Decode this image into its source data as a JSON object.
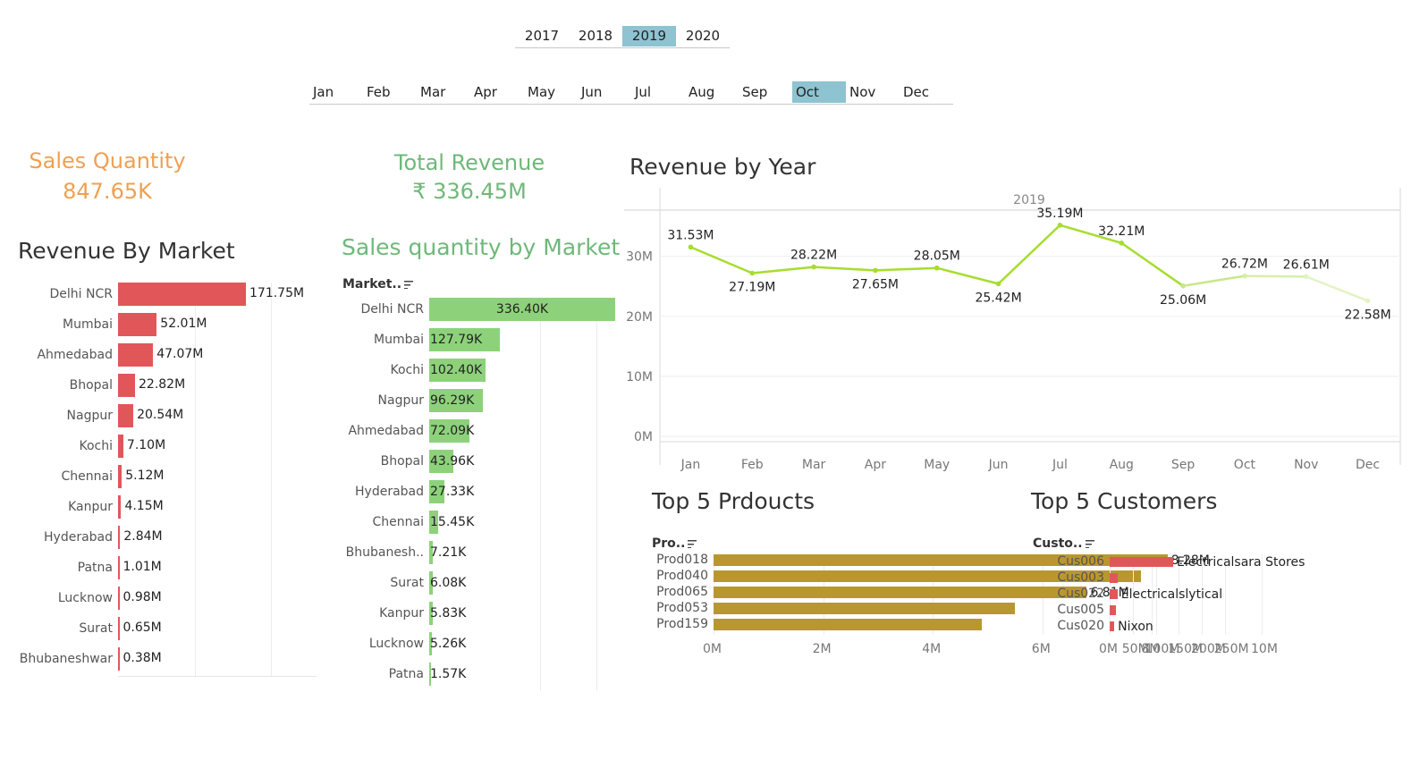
{
  "year_filter": {
    "items": [
      "2017",
      "2018",
      "2019",
      "2020"
    ],
    "selected": "2019"
  },
  "month_filter": {
    "items": [
      "Jan",
      "Feb",
      "Mar",
      "Apr",
      "May",
      "Jun",
      "Jul",
      "Aug",
      "Sep",
      "Oct",
      "Nov",
      "Dec"
    ],
    "selected": "Oct"
  },
  "kpi": {
    "sales_quantity": {
      "title": "Sales Quantity",
      "value": "847.65K",
      "color": "#f0a050"
    },
    "total_revenue": {
      "title": "Total Revenue",
      "value": "₹ 336.45M",
      "color": "#6fb879"
    }
  },
  "revenue_by_market": {
    "title": "Revenue By Market",
    "bar_color": "#e15759",
    "chart_data": {
      "type": "bar",
      "orientation": "horizontal",
      "categories": [
        "Delhi NCR",
        "Mumbai",
        "Ahmedabad",
        "Bhopal",
        "Nagpur",
        "Kochi",
        "Chennai",
        "Kanpur",
        "Hyderabad",
        "Patna",
        "Lucknow",
        "Surat",
        "Bhubaneshwar"
      ],
      "values": [
        171.75,
        52.01,
        47.07,
        22.82,
        20.54,
        7.1,
        5.12,
        4.15,
        2.84,
        1.01,
        0.98,
        0.65,
        0.38
      ],
      "labels": [
        "171.75M",
        "52.01M",
        "47.07M",
        "22.82M",
        "20.54M",
        "7.10M",
        "5.12M",
        "4.15M",
        "2.84M",
        "1.01M",
        "0.98M",
        "0.65M",
        "0.38M"
      ],
      "unit": "M",
      "xlim": [
        0,
        250
      ]
    }
  },
  "sales_qty_by_market": {
    "title": "Sales quantity by Market",
    "header": "Market..",
    "bar_color": "#8dd27a",
    "chart_data": {
      "type": "bar",
      "orientation": "horizontal",
      "categories": [
        "Delhi NCR",
        "Mumbai",
        "Kochi",
        "Nagpur",
        "Ahmedabad",
        "Bhopal",
        "Hyderabad",
        "Chennai",
        "Bhubanesh..",
        "Surat",
        "Kanpur",
        "Lucknow",
        "Patna"
      ],
      "values": [
        336.4,
        127.79,
        102.4,
        96.29,
        72.09,
        43.96,
        27.33,
        15.45,
        7.21,
        6.08,
        5.83,
        5.26,
        1.57
      ],
      "labels": [
        "336.40K",
        "127.79K",
        "102.40K",
        "96.29K",
        "72.09K",
        "43.96K",
        "27.33K",
        "15.45K",
        "7.21K",
        "6.08K",
        "5.83K",
        "5.26K",
        "1.57K"
      ],
      "unit": "K",
      "xlim": [
        0,
        336.4
      ]
    }
  },
  "revenue_by_year": {
    "title": "Revenue by Year",
    "line_color": "#a6dd2e",
    "chart_data": {
      "type": "line",
      "year_header": "2019",
      "x": [
        "Jan",
        "Feb",
        "Mar",
        "Apr",
        "May",
        "Jun",
        "Jul",
        "Aug",
        "Sep",
        "Oct",
        "Nov",
        "Dec"
      ],
      "values": [
        31.53,
        27.19,
        28.22,
        27.65,
        28.05,
        25.42,
        35.19,
        32.21,
        25.06,
        26.72,
        26.61,
        22.58
      ],
      "labels": [
        "31.53M",
        "27.19M",
        "28.22M",
        "27.65M",
        "28.05M",
        "25.42M",
        "35.19M",
        "32.21M",
        "25.06M",
        "26.72M",
        "26.61M",
        "22.58M"
      ],
      "y_ticks": [
        "0M",
        "10M",
        "20M",
        "30M"
      ],
      "y_tick_values": [
        0,
        10,
        20,
        30
      ],
      "ylim": [
        0,
        36.5
      ]
    }
  },
  "top_products": {
    "title": "Top 5 Prdoucts",
    "header": "Pro..",
    "bar_color": "#b8982e",
    "chart_data": {
      "type": "bar",
      "orientation": "horizontal",
      "categories": [
        "Prod018",
        "Prod040",
        "Prod065",
        "Prod053",
        "Prod159"
      ],
      "values": [
        8.28,
        7.8,
        6.81,
        5.5,
        4.9
      ],
      "labels": [
        "8.28M",
        "",
        "6.81M",
        "",
        ""
      ],
      "x_ticks": [
        "0M",
        "2M",
        "4M",
        "6M",
        "8M",
        "10M"
      ],
      "x_tick_values": [
        0,
        2,
        4,
        6,
        8,
        10
      ],
      "xlim": [
        0,
        10
      ]
    }
  },
  "top_customers": {
    "title": "Top 5 Customers",
    "header": "Custo..",
    "bar_color": "#e15759",
    "chart_data": {
      "type": "bar",
      "orientation": "horizontal",
      "categories": [
        "Cus006",
        "Cus003",
        "Cus022",
        "Cus005",
        "Cus020"
      ],
      "values": [
        138,
        18,
        17,
        14,
        10
      ],
      "labels": [
        "Electricalsara Stores",
        "",
        "Electricalslytical",
        "",
        "Nixon"
      ],
      "x_ticks": [
        "0M",
        "50M",
        "100M",
        "150M",
        "200M",
        "250M"
      ],
      "x_tick_values": [
        0,
        50,
        100,
        150,
        200,
        250
      ],
      "xlim": [
        0,
        250
      ]
    }
  }
}
